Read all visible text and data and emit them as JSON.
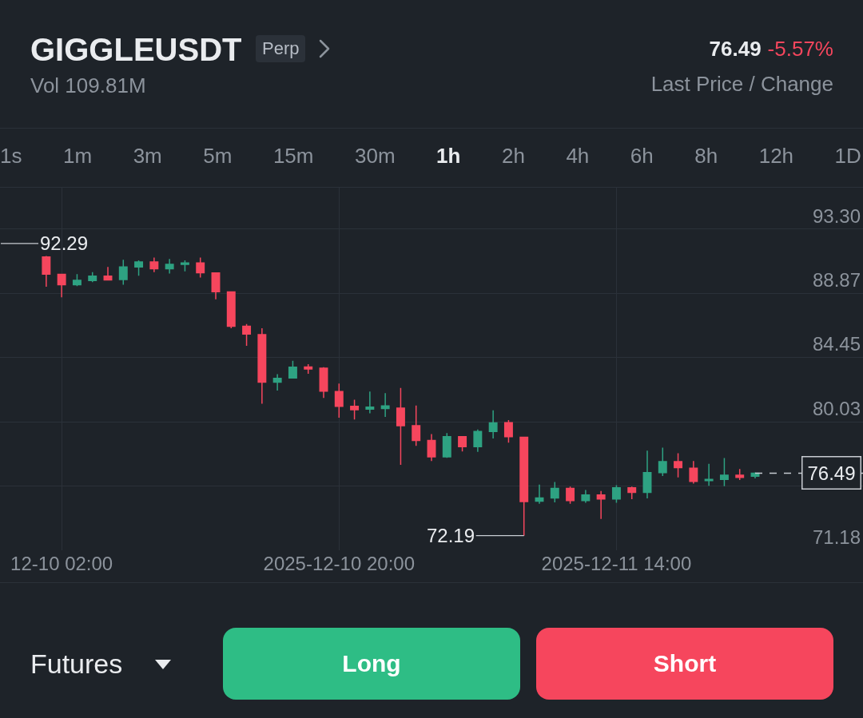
{
  "chart_data": {
    "type": "candlestick",
    "title": "GIGGLEUSDT",
    "subtitle": "Vol 109.81M",
    "x": [
      "2025-12-10T01:00",
      "2025-12-10T02:00",
      "2025-12-10T03:00",
      "2025-12-10T04:00",
      "2025-12-10T05:00",
      "2025-12-10T06:00",
      "2025-12-10T07:00",
      "2025-12-10T08:00",
      "2025-12-10T09:00",
      "2025-12-10T10:00",
      "2025-12-10T11:00",
      "2025-12-10T12:00",
      "2025-12-10T13:00",
      "2025-12-10T14:00",
      "2025-12-10T15:00",
      "2025-12-10T16:00",
      "2025-12-10T17:00",
      "2025-12-10T18:00",
      "2025-12-10T19:00",
      "2025-12-10T20:00",
      "2025-12-10T21:00",
      "2025-12-10T22:00",
      "2025-12-10T23:00",
      "2025-12-11T00:00",
      "2025-12-11T01:00",
      "2025-12-11T02:00",
      "2025-12-11T03:00",
      "2025-12-11T04:00",
      "2025-12-11T05:00",
      "2025-12-11T06:00",
      "2025-12-11T07:00",
      "2025-12-11T08:00",
      "2025-12-11T09:00",
      "2025-12-11T10:00",
      "2025-12-11T11:00",
      "2025-12-11T12:00",
      "2025-12-11T13:00",
      "2025-12-11T14:00",
      "2025-12-11T15:00",
      "2025-12-11T16:00",
      "2025-12-11T17:00",
      "2025-12-11T18:00",
      "2025-12-11T19:00",
      "2025-12-11T20:00",
      "2025-12-11T21:00",
      "2025-12-11T22:00",
      "2025-12-11T23:00"
    ],
    "ohlc": [
      [
        91.39,
        91.45,
        89.34,
        90.21
      ],
      [
        90.19,
        90.2,
        88.61,
        89.47
      ],
      [
        89.47,
        90.21,
        89.38,
        89.78
      ],
      [
        89.76,
        90.34,
        89.65,
        90.07
      ],
      [
        90.07,
        90.7,
        89.81,
        89.81
      ],
      [
        89.83,
        91.19,
        89.48,
        90.7
      ],
      [
        90.7,
        91.15,
        90.1,
        91.04
      ],
      [
        91.04,
        91.35,
        90.34,
        90.57
      ],
      [
        90.57,
        91.25,
        90.25,
        90.88
      ],
      [
        90.88,
        91.15,
        90.39,
        90.97
      ],
      [
        90.97,
        91.35,
        89.97,
        90.3
      ],
      [
        90.28,
        90.28,
        88.47,
        89.0
      ],
      [
        88.98,
        88.98,
        86.48,
        86.62
      ],
      [
        86.62,
        86.77,
        85.27,
        86.08
      ],
      [
        86.04,
        86.48,
        81.27,
        82.76
      ],
      [
        82.76,
        83.31,
        82.18,
        83.03
      ],
      [
        83.05,
        84.23,
        83.05,
        83.8
      ],
      [
        83.81,
        84.0,
        83.34,
        83.67
      ],
      [
        83.72,
        83.8,
        81.68,
        82.14
      ],
      [
        82.11,
        82.67,
        80.32,
        81.1
      ],
      [
        81.1,
        81.55,
        80.19,
        80.86
      ],
      [
        80.91,
        82.11,
        80.61,
        81.04
      ],
      [
        80.95,
        82.0,
        80.37,
        81.13
      ],
      [
        80.97,
        82.36,
        77.07,
        79.77
      ],
      [
        79.77,
        81.15,
        78.38,
        78.74
      ],
      [
        78.74,
        79.19,
        77.33,
        77.62
      ],
      [
        77.62,
        79.25,
        77.55,
        79.01
      ],
      [
        79.01,
        79.05,
        77.99,
        78.32
      ],
      [
        78.32,
        79.5,
        77.96,
        79.37
      ],
      [
        79.37,
        80.82,
        78.88,
        79.95
      ],
      [
        79.97,
        80.15,
        78.59,
        79.01
      ],
      [
        78.97,
        78.97,
        72.19,
        74.53
      ],
      [
        74.57,
        75.7,
        74.39,
        74.79
      ],
      [
        74.79,
        75.88,
        74.48,
        75.44
      ],
      [
        75.44,
        75.57,
        74.39,
        74.61
      ],
      [
        74.61,
        75.33,
        74.46,
        74.99
      ],
      [
        74.99,
        75.26,
        73.34,
        74.72
      ],
      [
        74.72,
        75.66,
        74.45,
        75.48
      ],
      [
        75.48,
        75.57,
        74.7,
        75.17
      ],
      [
        75.17,
        78.05,
        74.75,
        76.53
      ],
      [
        76.53,
        78.25,
        76.3,
        77.29
      ],
      [
        77.29,
        77.87,
        76.2,
        76.87
      ],
      [
        76.84,
        77.33,
        75.78,
        75.93
      ],
      [
        75.98,
        77.14,
        75.62,
        76.07
      ],
      [
        76.07,
        77.53,
        75.6,
        76.35
      ],
      [
        76.35,
        76.78,
        76.02,
        76.2
      ],
      [
        76.29,
        76.54,
        76.13,
        76.49
      ]
    ],
    "colors": [
      "#f6465d",
      "#f6465d",
      "#2ea282",
      "#2ea282",
      "#f6465d",
      "#2ea282",
      "#2ea282",
      "#f6465d",
      "#2ea282",
      "#2ea282",
      "#f6465d",
      "#f6465d",
      "#f6465d",
      "#f6465d",
      "#f6465d",
      "#2ea282",
      "#2ea282",
      "#f6465d",
      "#f6465d",
      "#f6465d",
      "#f6465d",
      "#2ea282",
      "#2ea282",
      "#f6465d",
      "#f6465d",
      "#f6465d",
      "#2ea282",
      "#f6465d",
      "#2ea282",
      "#2ea282",
      "#f6465d",
      "#f6465d",
      "#2ea282",
      "#2ea282",
      "#f6465d",
      "#2ea282",
      "#f6465d",
      "#2ea282",
      "#f6465d",
      "#2ea282",
      "#2ea282",
      "#f6465d",
      "#f6465d",
      "#2ea282",
      "#2ea282",
      "#f6465d",
      "#2ea282"
    ],
    "xlim": [
      "2025-12-09T22:00",
      "2025-12-12T06:00"
    ],
    "xticks": [
      {
        "value": "2025-12-10T02:00",
        "label": "12-10 02:00"
      },
      {
        "value": "2025-12-10T20:00",
        "label": "2025-12-10 20:00"
      },
      {
        "value": "2025-12-11T14:00",
        "label": "2025-12-11 14:00"
      }
    ],
    "ylim": [
      71.18,
      96.16
    ],
    "yticks": [
      71.18,
      {
        "value": 75.61,
        "label": null
      },
      80.03,
      84.45,
      88.87,
      {
        "value": 93.3,
        "label": "93.30"
      }
    ],
    "grid": true,
    "ref_lines": [
      {
        "axis": "y",
        "value": 76.49,
        "label": "76.49",
        "line_style": "dashed",
        "color": "#c8ccd2"
      }
    ],
    "annotations": [
      "92.29",
      {
        "text": "72.19",
        "x": "2025-12-11T08:00",
        "y": 72.19
      },
      "Perp",
      "76.49",
      "-5.57%",
      "Last Price / Change",
      "1s",
      "1m",
      "3m",
      "5m",
      "15m",
      "30m",
      "1h",
      "2h",
      "4h",
      "6h",
      "8h",
      "12h",
      "1D",
      "Futures",
      "Long",
      "Short"
    ]
  }
}
